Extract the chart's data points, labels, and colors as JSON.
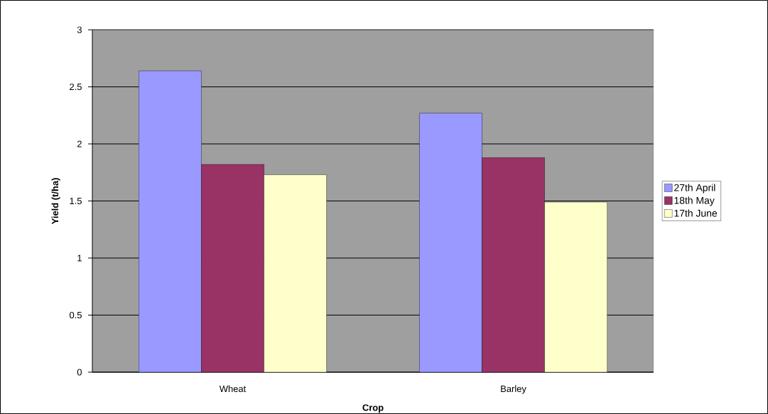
{
  "chart_data": {
    "type": "bar",
    "xlabel": "Crop",
    "ylabel": "Yield (t/ha)",
    "categories": [
      "Wheat",
      "Barley"
    ],
    "series": [
      {
        "name": "27th April",
        "color": "#9999ff",
        "values": [
          2.64,
          2.27
        ]
      },
      {
        "name": "18th May",
        "color": "#993366",
        "values": [
          1.82,
          1.88
        ]
      },
      {
        "name": "17th June",
        "color": "#ffffcc",
        "values": [
          1.73,
          1.49
        ]
      }
    ],
    "ylim": [
      0,
      3
    ],
    "yticks": [
      0,
      0.5,
      1,
      1.5,
      2,
      2.5,
      3
    ],
    "grid": "y",
    "legend": "right"
  }
}
